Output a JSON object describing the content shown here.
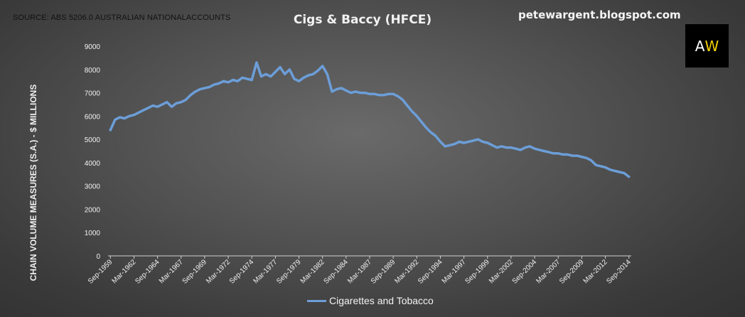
{
  "source": "SOURCE: ABS 5206.0 AUSTRALIAN NATIONALACCOUNTS",
  "blog": "petewargent.blogspot.com",
  "logo": {
    "left": "A",
    "right": "W"
  },
  "chart_data": {
    "type": "line",
    "title": "Cigs & Baccy (HFCE)",
    "ylabel": "CHAIN VOLUME MEASURES (S.A.) - $ MILLIONS",
    "xlabel": "",
    "ylim": [
      0,
      9000
    ],
    "yticks": [
      "0",
      "1000",
      "2000",
      "3000",
      "4000",
      "5000",
      "6000",
      "7000",
      "8000",
      "9000"
    ],
    "xticks": [
      "Sep-1959",
      "Mar-1962",
      "Sep-1964",
      "Mar-1967",
      "Sep-1969",
      "Mar-1972",
      "Sep-1974",
      "Mar-1977",
      "Sep-1979",
      "Mar-1982",
      "Sep-1984",
      "Mar-1987",
      "Sep-1989",
      "Mar-1992",
      "Sep-1994",
      "Mar-1997",
      "Sep-1999",
      "Mar-2002",
      "Sep-2004",
      "Mar-2007",
      "Sep-2009",
      "Mar-2012",
      "Sep-2014"
    ],
    "legend_position": "bottom",
    "grid": false,
    "series_color": "#6c9ed8",
    "series": [
      {
        "name": "Cigarettes and Tobacco",
        "x": [
          "Sep-1959",
          "Mar-1960",
          "Sep-1960",
          "Mar-1961",
          "Sep-1961",
          "Mar-1962",
          "Sep-1962",
          "Mar-1963",
          "Sep-1963",
          "Mar-1964",
          "Sep-1964",
          "Mar-1965",
          "Sep-1965",
          "Mar-1966",
          "Sep-1966",
          "Mar-1967",
          "Sep-1967",
          "Mar-1968",
          "Sep-1968",
          "Mar-1969",
          "Sep-1969",
          "Mar-1970",
          "Sep-1970",
          "Mar-1971",
          "Sep-1971",
          "Mar-1972",
          "Sep-1972",
          "Mar-1973",
          "Sep-1973",
          "Mar-1974",
          "Sep-1974",
          "Mar-1975",
          "Sep-1975",
          "Mar-1976",
          "Sep-1976",
          "Mar-1977",
          "Sep-1977",
          "Mar-1978",
          "Sep-1978",
          "Mar-1979",
          "Sep-1979",
          "Mar-1980",
          "Sep-1980",
          "Mar-1981",
          "Sep-1981",
          "Mar-1982",
          "Sep-1982",
          "Mar-1983",
          "Sep-1983",
          "Mar-1984",
          "Sep-1984",
          "Mar-1985",
          "Sep-1985",
          "Mar-1986",
          "Sep-1986",
          "Mar-1987",
          "Sep-1987",
          "Mar-1988",
          "Sep-1988",
          "Mar-1989",
          "Sep-1989",
          "Mar-1990",
          "Sep-1990",
          "Mar-1991",
          "Sep-1991",
          "Mar-1992",
          "Sep-1992",
          "Mar-1993",
          "Sep-1993",
          "Mar-1994",
          "Sep-1994",
          "Mar-1995",
          "Sep-1995",
          "Mar-1996",
          "Sep-1996",
          "Mar-1997",
          "Sep-1997",
          "Mar-1998",
          "Sep-1998",
          "Mar-1999",
          "Sep-1999",
          "Mar-2000",
          "Sep-2000",
          "Mar-2001",
          "Sep-2001",
          "Mar-2002",
          "Sep-2002",
          "Mar-2003",
          "Sep-2003",
          "Mar-2004",
          "Sep-2004",
          "Mar-2005",
          "Sep-2005",
          "Mar-2006",
          "Sep-2006",
          "Mar-2007",
          "Sep-2007",
          "Mar-2008",
          "Sep-2008",
          "Mar-2009",
          "Sep-2009",
          "Mar-2010",
          "Sep-2010",
          "Mar-2011",
          "Sep-2011",
          "Mar-2012",
          "Sep-2012",
          "Mar-2013",
          "Sep-2013",
          "Mar-2014",
          "Sep-2014"
        ],
        "values": [
          5400,
          5850,
          5950,
          5900,
          6000,
          6050,
          6150,
          6250,
          6350,
          6450,
          6400,
          6500,
          6600,
          6400,
          6550,
          6600,
          6700,
          6900,
          7050,
          7150,
          7200,
          7250,
          7350,
          7400,
          7500,
          7450,
          7550,
          7500,
          7650,
          7600,
          7550,
          8300,
          7700,
          7800,
          7700,
          7900,
          8100,
          7800,
          8000,
          7600,
          7500,
          7650,
          7750,
          7800,
          7950,
          8150,
          7800,
          7050,
          7150,
          7200,
          7100,
          7000,
          7050,
          7000,
          7000,
          6950,
          6950,
          6900,
          6900,
          6950,
          6950,
          6850,
          6700,
          6450,
          6200,
          6000,
          5750,
          5500,
          5300,
          5150,
          4900,
          4700,
          4750,
          4800,
          4900,
          4850,
          4900,
          4950,
          5000,
          4900,
          4850,
          4750,
          4650,
          4700,
          4650,
          4650,
          4600,
          4550,
          4650,
          4700,
          4600,
          4550,
          4500,
          4450,
          4400,
          4400,
          4350,
          4350,
          4300,
          4300,
          4250,
          4200,
          4100,
          3900,
          3850,
          3800,
          3700,
          3650,
          3600,
          3550,
          3400
        ]
      }
    ]
  }
}
